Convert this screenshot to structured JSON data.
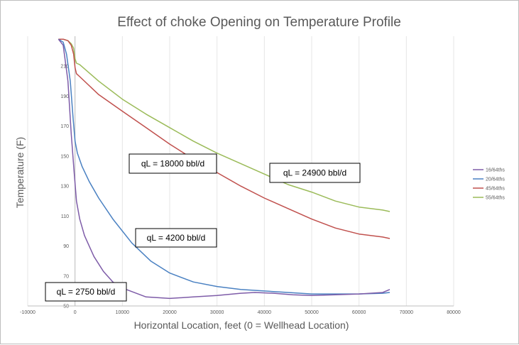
{
  "chart_data": {
    "type": "line",
    "title": "Effect of choke Opening on Temperature Profile",
    "xlabel": "Horizontal Location, feet (0 = Wellhead Location)",
    "ylabel": "Temperature (F)",
    "xlim": [
      -10000,
      80000
    ],
    "ylim": [
      50,
      230
    ],
    "xticks": [
      -10000,
      0,
      10000,
      20000,
      30000,
      40000,
      50000,
      60000,
      70000,
      80000
    ],
    "yticks": [
      50,
      70,
      90,
      110,
      130,
      150,
      170,
      190,
      210
    ],
    "grid": "vertical",
    "legend_position": "right",
    "series": [
      {
        "name": "16/64ths",
        "color": "#7e5ca8",
        "x": [
          -3500,
          -2500,
          -1500,
          -800,
          -200,
          300,
          1000,
          2000,
          4000,
          6000,
          8000,
          10000,
          15000,
          20000,
          25000,
          30000,
          35000,
          38000,
          42000,
          46000,
          50000,
          55000,
          60000,
          65000,
          66500
        ],
        "y": [
          228,
          224,
          200,
          165,
          140,
          120,
          108,
          97,
          83,
          73,
          66,
          62,
          56,
          55,
          56,
          57,
          58.5,
          59,
          58.5,
          57.5,
          57,
          57.5,
          58,
          59,
          61
        ]
      },
      {
        "name": "20/64ths",
        "color": "#4a81c2",
        "x": [
          -3500,
          -2500,
          -1800,
          -1000,
          -400,
          0,
          500,
          1500,
          3000,
          5000,
          8000,
          12000,
          16000,
          20000,
          25000,
          30000,
          35000,
          40000,
          45000,
          50000,
          55000,
          60000,
          65000,
          66500
        ],
        "y": [
          228,
          226,
          218,
          200,
          175,
          160,
          152,
          143,
          133,
          122,
          108,
          92,
          80,
          72,
          66,
          63,
          61,
          60,
          59,
          58,
          58,
          58,
          58.5,
          59
        ]
      },
      {
        "name": "45/64ths",
        "color": "#c0504d",
        "x": [
          -3500,
          -2500,
          -1500,
          -800,
          -300,
          0,
          300,
          1000,
          5000,
          10000,
          15000,
          20000,
          25000,
          30000,
          35000,
          40000,
          45000,
          50000,
          55000,
          60000,
          65000,
          66500
        ],
        "y": [
          228,
          228,
          227,
          224,
          218,
          209,
          205,
          203,
          191,
          180,
          169,
          158,
          148,
          139,
          130,
          122,
          115,
          108,
          102,
          98,
          96,
          95
        ]
      },
      {
        "name": "55/64ths",
        "color": "#9bbb59",
        "x": [
          -3500,
          -2500,
          -1500,
          -800,
          -300,
          0,
          300,
          1000,
          5000,
          10000,
          15000,
          20000,
          25000,
          30000,
          35000,
          40000,
          45000,
          50000,
          55000,
          60000,
          65000,
          66500
        ],
        "y": [
          228,
          228,
          227,
          225,
          222,
          215,
          212,
          211,
          200,
          188,
          178,
          169,
          160,
          152,
          145,
          138,
          131,
          126,
          120,
          116,
          114,
          113
        ]
      }
    ],
    "annotations": [
      {
        "text": "qL = 18000 bbl/d"
      },
      {
        "text": "qL = 24900 bbl/d"
      },
      {
        "text": "qL = 4200 bbl/d"
      },
      {
        "text": "qL = 2750 bbl/d"
      }
    ]
  }
}
